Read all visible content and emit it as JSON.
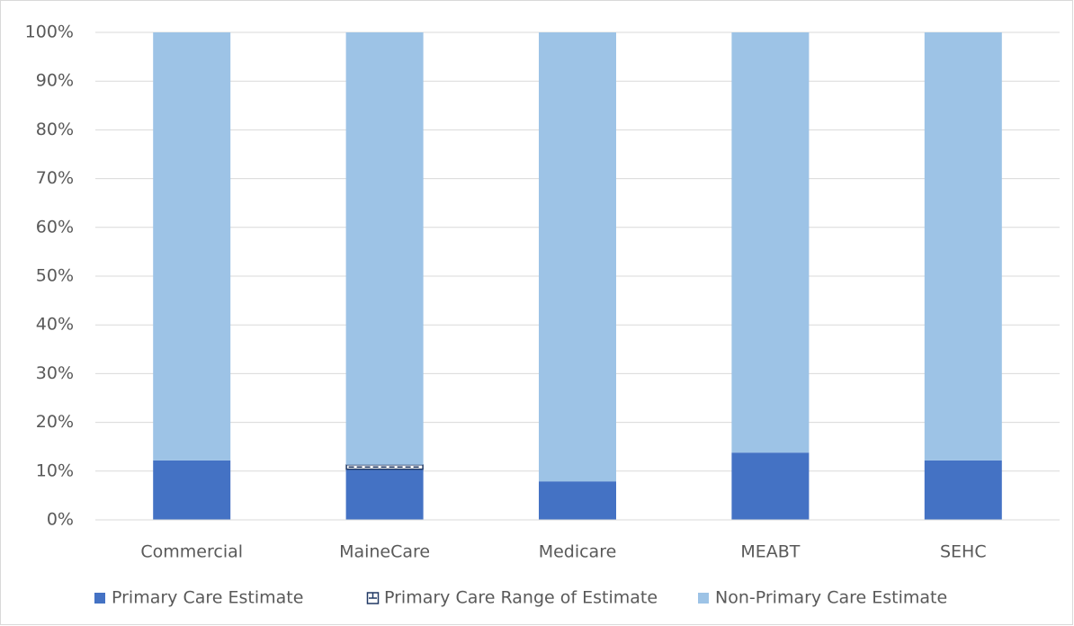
{
  "chart_data": {
    "type": "stacked-bar",
    "categories": [
      "Commercial",
      "MaineCare",
      "Medicare",
      "MEABT",
      "SEHC"
    ],
    "series": [
      {
        "name": "Primary Care Estimate",
        "color": "#4472c4",
        "values": [
          12.2,
          10.4,
          7.9,
          13.8,
          12.2
        ]
      },
      {
        "name": "Primary Care Range of Estimate",
        "color": "#203864",
        "values": [
          0,
          0.9,
          0,
          0,
          0
        ]
      },
      {
        "name": "Non-Primary Care Estimate",
        "color": "#9dc3e6",
        "values": [
          87.8,
          88.7,
          92.1,
          86.2,
          87.8
        ]
      }
    ],
    "ylim": [
      0,
      100
    ],
    "yticks": [
      {
        "value": 0,
        "label": "0%"
      },
      {
        "value": 10,
        "label": "10%"
      },
      {
        "value": 20,
        "label": "20%"
      },
      {
        "value": 30,
        "label": "30%"
      },
      {
        "value": 40,
        "label": "40%"
      },
      {
        "value": 50,
        "label": "50%"
      },
      {
        "value": 60,
        "label": "60%"
      },
      {
        "value": 70,
        "label": "70%"
      },
      {
        "value": 80,
        "label": "80%"
      },
      {
        "value": 90,
        "label": "90%"
      },
      {
        "value": 100,
        "label": "100%"
      }
    ],
    "grid": true,
    "legend": "bottom"
  }
}
